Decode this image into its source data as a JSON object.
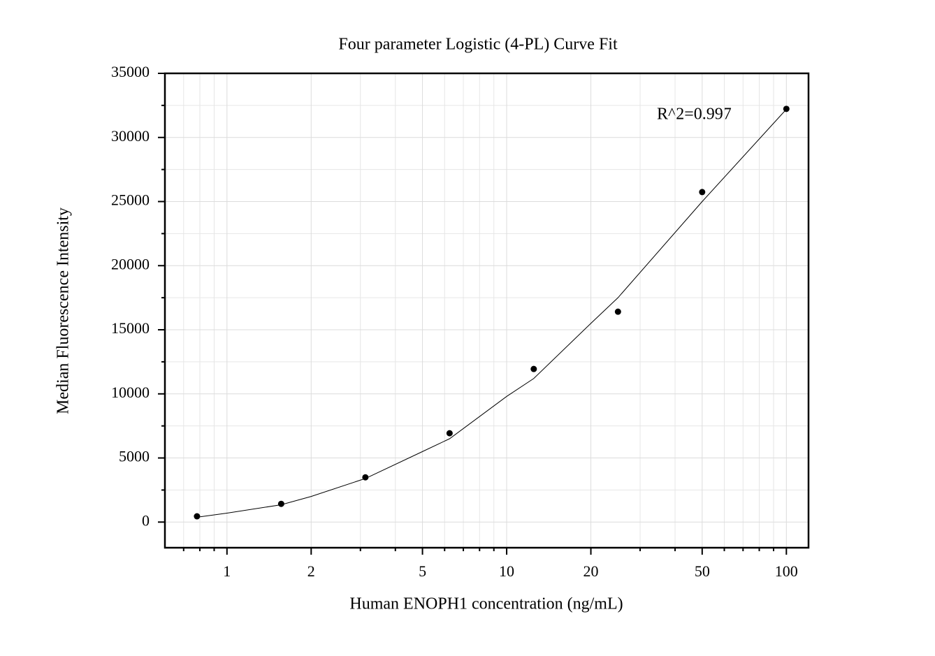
{
  "chart_data": {
    "type": "scatter",
    "title": "Four parameter Logistic (4-PL) Curve Fit",
    "xlabel": "Human ENOPH1 concentration (ng/mL)",
    "ylabel": "Median Fluorescence Intensity",
    "annotation": "R^2=0.997",
    "xscale": "log",
    "xlim": [
      0.6,
      120
    ],
    "xticks": [
      1,
      2,
      5,
      10,
      20,
      50,
      100
    ],
    "xminorticks": [
      0.7,
      0.8,
      0.9,
      3,
      4,
      6,
      7,
      8,
      9,
      30,
      40,
      60,
      70,
      80,
      90
    ],
    "ylim": [
      -2000,
      35000
    ],
    "yticks": [
      0,
      5000,
      10000,
      15000,
      20000,
      25000,
      30000,
      35000
    ],
    "yminorticks": [
      2500,
      7500,
      12500,
      17500,
      22500,
      27500,
      32500
    ],
    "grid": true,
    "series": [
      {
        "mode": "markers",
        "color": "#000000",
        "x": [
          0.78125,
          1.5625,
          3.125,
          6.25,
          12.5,
          25,
          50,
          100
        ],
        "values": [
          450,
          1420,
          3490,
          6930,
          11940,
          16410,
          25740,
          32230
        ]
      },
      {
        "mode": "line",
        "color": "#000000",
        "x": [
          0.78125,
          1,
          1.5625,
          2,
          3.125,
          5,
          6.25,
          10,
          12.5,
          20,
          25,
          50,
          100
        ],
        "values": [
          380,
          700,
          1350,
          2000,
          3400,
          5500,
          6500,
          9800,
          11200,
          15500,
          17500,
          25000,
          32200
        ]
      }
    ]
  }
}
